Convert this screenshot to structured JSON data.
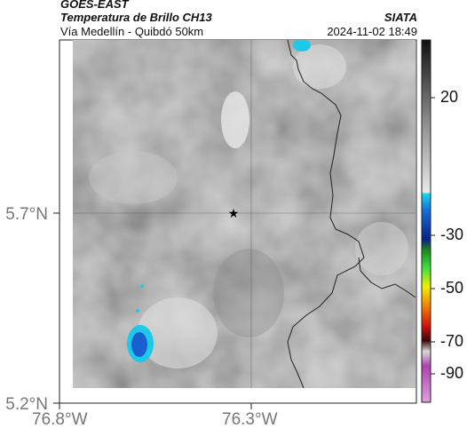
{
  "header": {
    "satellite": "GOES-EAST",
    "product": "Temperatura de Brillo CH13",
    "region": "Vía Medellín - Quibdó 50km",
    "source": "SIATA",
    "datetime": "2024-11-02 18:49"
  },
  "map": {
    "lat_labels": [
      "5.7°N",
      "5.2°N"
    ],
    "lon_labels": [
      "76.8°W",
      "76.3°W"
    ],
    "marker": "star-marker",
    "grid": true
  },
  "colorbar": {
    "ticks": [
      "20",
      "-30",
      "-50",
      "-70",
      "-90"
    ],
    "colors": {
      "warm_gray": "#b5b5b5",
      "cold_cyan": "#1ec8e8",
      "cold_blue": "#1a5fd0",
      "green": "#3cc83c",
      "yellow": "#f0f000",
      "red": "#e02010",
      "magenta": "#b040b0"
    }
  }
}
